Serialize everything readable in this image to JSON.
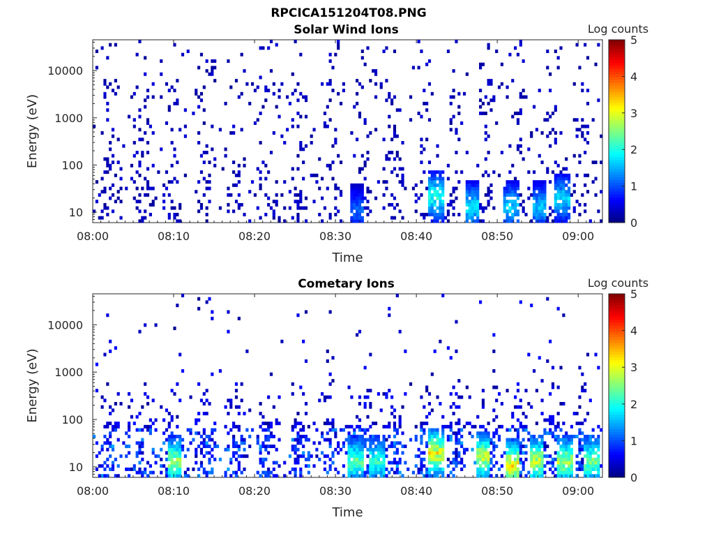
{
  "figure": {
    "title": "RPCICA151204T08.PNG"
  },
  "chart_data": [
    {
      "type": "heatmap",
      "title": "Solar Wind Ions",
      "xlabel": "Time",
      "ylabel": "Energy (eV)",
      "x_ticks": [
        "08:00",
        "08:10",
        "08:20",
        "08:30",
        "08:40",
        "08:50",
        "09:00"
      ],
      "xlim": [
        "08:00",
        "09:03"
      ],
      "y_ticks": [
        "10",
        "100",
        "1000",
        "10000"
      ],
      "y_scale": "log",
      "ylim": [
        6,
        45000
      ],
      "colorbar": {
        "label": "Log counts",
        "ticks": [
          "0",
          "1",
          "2",
          "3",
          "4",
          "5"
        ],
        "range": [
          0,
          5
        ],
        "colormap": "jet"
      },
      "hotspots": [
        {
          "t": 32.5,
          "e": 10,
          "v": 1.2
        },
        {
          "t": 42.3,
          "e": 20,
          "v": 2.2
        },
        {
          "t": 46.8,
          "e": 12,
          "v": 1.9
        },
        {
          "t": 51.6,
          "e": 12,
          "v": 1.8
        },
        {
          "t": 55.0,
          "e": 12,
          "v": 1.7
        },
        {
          "t": 57.8,
          "e": 18,
          "v": 1.8
        }
      ]
    },
    {
      "type": "heatmap",
      "title": "Cometary Ions",
      "xlabel": "Time",
      "ylabel": "Energy (eV)",
      "x_ticks": [
        "08:00",
        "08:10",
        "08:20",
        "08:30",
        "08:40",
        "08:50",
        "09:00"
      ],
      "xlim": [
        "08:00",
        "09:03"
      ],
      "y_ticks": [
        "10",
        "100",
        "1000",
        "10000"
      ],
      "y_scale": "log",
      "ylim": [
        6,
        45000
      ],
      "colorbar": {
        "label": "Log counts",
        "ticks": [
          "0",
          "1",
          "2",
          "3",
          "4",
          "5"
        ],
        "range": [
          0,
          5
        ],
        "colormap": "jet"
      },
      "hotspots": [
        {
          "t": 10.0,
          "e": 12,
          "v": 2.8
        },
        {
          "t": 32.3,
          "e": 12,
          "v": 2.5
        },
        {
          "t": 35.0,
          "e": 12,
          "v": 2.3
        },
        {
          "t": 42.3,
          "e": 18,
          "v": 3.2
        },
        {
          "t": 48.0,
          "e": 15,
          "v": 3.0
        },
        {
          "t": 51.8,
          "e": 10,
          "v": 3.3
        },
        {
          "t": 54.8,
          "e": 12,
          "v": 3.0
        },
        {
          "t": 58.2,
          "e": 12,
          "v": 2.9
        },
        {
          "t": 61.5,
          "e": 12,
          "v": 2.6
        }
      ]
    }
  ]
}
